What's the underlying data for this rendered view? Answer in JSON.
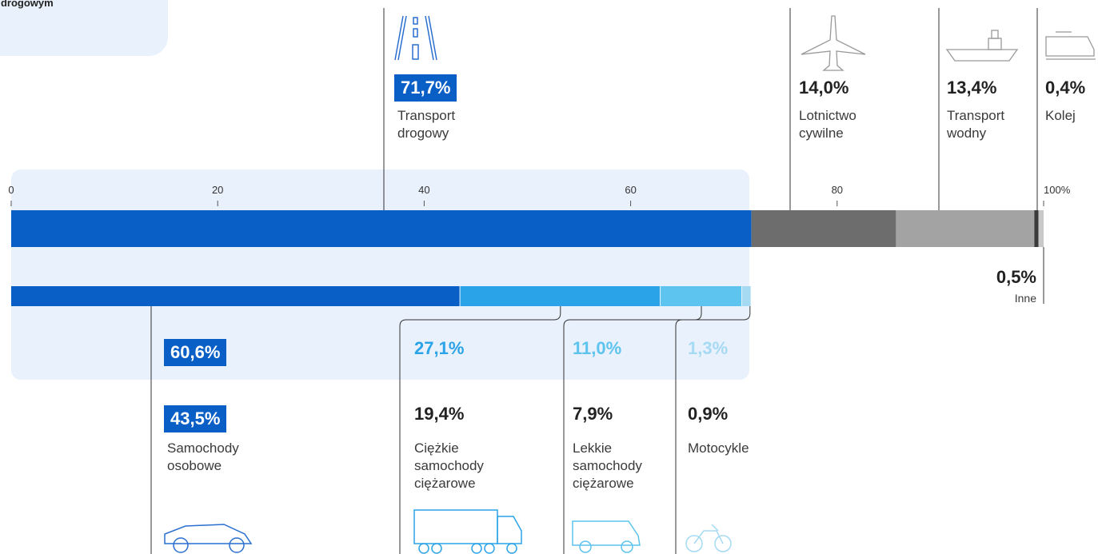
{
  "chart_data": {
    "type": "bar",
    "corner_text": "ort drogowym",
    "xlim": [
      0,
      100
    ],
    "xticks": [
      0,
      20,
      40,
      60,
      {
        "value": 100,
        "label": "100%"
      },
      80
    ],
    "modes": [
      {
        "name": "Transport drogowy",
        "value": 71.7,
        "value_label": "71,7%",
        "color": "#0a5fc7"
      },
      {
        "name": "Lotnictwo cywilne",
        "value": 14.0,
        "value_label": "14,0%",
        "color": "#6d6d6d"
      },
      {
        "name": "Transport wodny",
        "value": 13.4,
        "value_label": "13,4%",
        "color": "#a3a3a3"
      },
      {
        "name": "Kolej",
        "value": 0.4,
        "value_label": "0,4%",
        "color": "#3a3a3a"
      },
      {
        "name": "Inne",
        "value": 0.5,
        "value_label": "0,5%",
        "color": "#c8c8c8"
      }
    ],
    "road_breakdown": [
      {
        "name": "Samochody osobowe",
        "share": 60.6,
        "share_label": "60,6%",
        "value": 43.5,
        "value_label": "43,5%",
        "color": "#0a5fc7"
      },
      {
        "name": "Ciężkie samochody ciężarowe",
        "share": 27.1,
        "share_label": "27,1%",
        "value": 19.4,
        "value_label": "19,4%",
        "color": "#2ba3e8"
      },
      {
        "name": "Lekkie samochody ciężarowe",
        "share": 11.0,
        "share_label": "11,0%",
        "value": 7.9,
        "value_label": "7,9%",
        "color": "#5cc4ee"
      },
      {
        "name": "Motocykle",
        "share": 1.3,
        "share_label": "1,3%",
        "value": 0.9,
        "value_label": "0,9%",
        "color": "#a6daf3"
      }
    ]
  }
}
